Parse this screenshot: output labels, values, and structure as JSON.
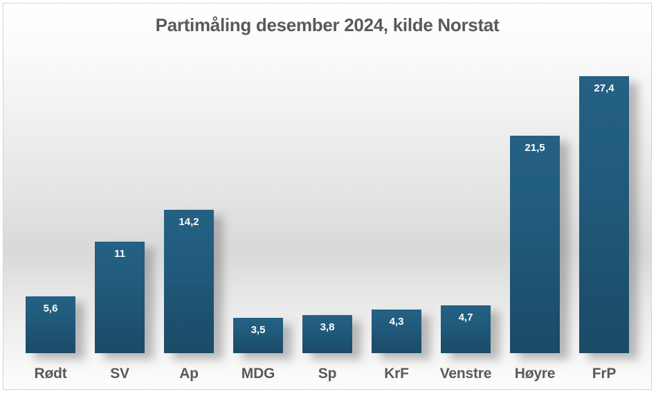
{
  "chart_data": {
    "type": "bar",
    "title": "Partimåling desember 2024, kilde Norstat",
    "categories": [
      "Rødt",
      "SV",
      "Ap",
      "MDG",
      "Sp",
      "KrF",
      "Venstre",
      "Høyre",
      "FrP"
    ],
    "values": [
      5.6,
      11,
      14.2,
      3.5,
      3.8,
      4.3,
      4.7,
      21.5,
      27.4
    ],
    "value_labels": [
      "5,6",
      "11",
      "14,2",
      "3,5",
      "3,8",
      "4,3",
      "4,7",
      "21,5",
      "27,4"
    ],
    "xlabel": "",
    "ylabel": "",
    "ylim": [
      0,
      27.4
    ],
    "grid": false,
    "legend": false,
    "axis_lines": false
  },
  "colors": {
    "bar_top": "#256184",
    "bar_bottom": "#1b4b66",
    "bar_value_text": "#ffffff",
    "title_text": "#595959",
    "category_text": "#595959",
    "frame_border": "#d4d4d4",
    "background_mid": "#d9d9d9"
  }
}
